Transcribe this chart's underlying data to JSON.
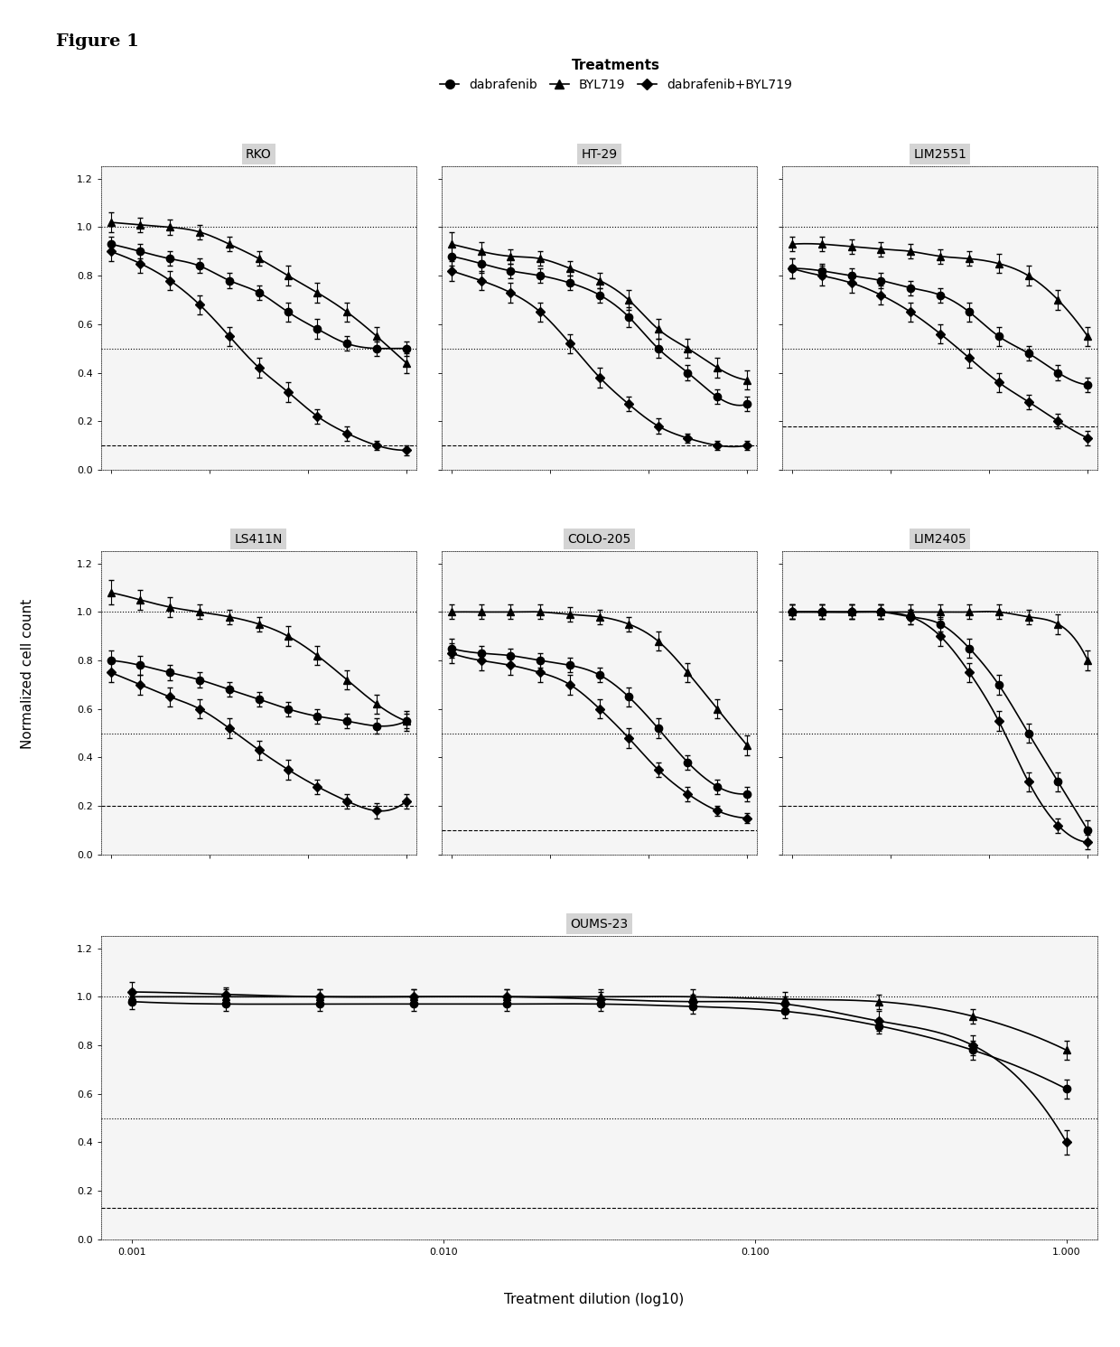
{
  "figure_title": "Figure 1",
  "legend_title": "Treatments",
  "xlabel": "Treatment dilution (log10)",
  "ylabel": "Normalized cell count",
  "x_values": [
    0.001,
    0.002,
    0.004,
    0.008,
    0.016,
    0.032,
    0.063,
    0.125,
    0.25,
    0.5,
    1.0
  ],
  "subplots": [
    {
      "title": "RKO",
      "dabrafenib": [
        0.93,
        0.9,
        0.87,
        0.84,
        0.78,
        0.73,
        0.65,
        0.58,
        0.52,
        0.5,
        0.5
      ],
      "dabrafenib_err": [
        0.03,
        0.03,
        0.03,
        0.03,
        0.03,
        0.03,
        0.04,
        0.04,
        0.03,
        0.03,
        0.03
      ],
      "BYL719": [
        1.02,
        1.01,
        1.0,
        0.98,
        0.93,
        0.87,
        0.8,
        0.73,
        0.65,
        0.55,
        0.44
      ],
      "BYL719_err": [
        0.04,
        0.03,
        0.03,
        0.03,
        0.03,
        0.03,
        0.04,
        0.04,
        0.04,
        0.04,
        0.04
      ],
      "combo": [
        0.9,
        0.85,
        0.78,
        0.68,
        0.55,
        0.42,
        0.32,
        0.22,
        0.15,
        0.1,
        0.08
      ],
      "combo_err": [
        0.04,
        0.04,
        0.04,
        0.04,
        0.04,
        0.04,
        0.04,
        0.03,
        0.03,
        0.02,
        0.02
      ],
      "hline_dashed": 0.1,
      "hline_dotted1": 1.0,
      "hline_dotted2": 0.5
    },
    {
      "title": "HT-29",
      "dabrafenib": [
        0.88,
        0.85,
        0.82,
        0.8,
        0.77,
        0.72,
        0.63,
        0.5,
        0.4,
        0.3,
        0.27
      ],
      "dabrafenib_err": [
        0.04,
        0.04,
        0.03,
        0.03,
        0.03,
        0.03,
        0.04,
        0.04,
        0.03,
        0.03,
        0.03
      ],
      "BYL719": [
        0.93,
        0.9,
        0.88,
        0.87,
        0.83,
        0.78,
        0.7,
        0.58,
        0.5,
        0.42,
        0.37
      ],
      "BYL719_err": [
        0.05,
        0.04,
        0.03,
        0.03,
        0.03,
        0.03,
        0.04,
        0.04,
        0.04,
        0.04,
        0.04
      ],
      "combo": [
        0.82,
        0.78,
        0.73,
        0.65,
        0.52,
        0.38,
        0.27,
        0.18,
        0.13,
        0.1,
        0.1
      ],
      "combo_err": [
        0.04,
        0.04,
        0.04,
        0.04,
        0.04,
        0.04,
        0.03,
        0.03,
        0.02,
        0.02,
        0.02
      ],
      "hline_dashed": 0.1,
      "hline_dotted1": 1.0,
      "hline_dotted2": 0.5
    },
    {
      "title": "LIM2551",
      "dabrafenib": [
        0.83,
        0.82,
        0.8,
        0.78,
        0.75,
        0.72,
        0.65,
        0.55,
        0.48,
        0.4,
        0.35
      ],
      "dabrafenib_err": [
        0.04,
        0.03,
        0.03,
        0.03,
        0.03,
        0.03,
        0.04,
        0.04,
        0.03,
        0.03,
        0.03
      ],
      "BYL719": [
        0.93,
        0.93,
        0.92,
        0.91,
        0.9,
        0.88,
        0.87,
        0.85,
        0.8,
        0.7,
        0.55
      ],
      "BYL719_err": [
        0.03,
        0.03,
        0.03,
        0.03,
        0.03,
        0.03,
        0.03,
        0.04,
        0.04,
        0.04,
        0.04
      ],
      "combo": [
        0.83,
        0.8,
        0.77,
        0.72,
        0.65,
        0.56,
        0.46,
        0.36,
        0.28,
        0.2,
        0.13
      ],
      "combo_err": [
        0.04,
        0.04,
        0.04,
        0.04,
        0.04,
        0.04,
        0.04,
        0.04,
        0.03,
        0.03,
        0.03
      ],
      "hline_dashed": 0.18,
      "hline_dotted1": 1.0,
      "hline_dotted2": 0.5
    },
    {
      "title": "LS411N",
      "dabrafenib": [
        0.8,
        0.78,
        0.75,
        0.72,
        0.68,
        0.64,
        0.6,
        0.57,
        0.55,
        0.53,
        0.55
      ],
      "dabrafenib_err": [
        0.04,
        0.04,
        0.03,
        0.03,
        0.03,
        0.03,
        0.03,
        0.03,
        0.03,
        0.03,
        0.03
      ],
      "BYL719": [
        1.08,
        1.05,
        1.02,
        1.0,
        0.98,
        0.95,
        0.9,
        0.82,
        0.72,
        0.62,
        0.55
      ],
      "BYL719_err": [
        0.05,
        0.04,
        0.04,
        0.03,
        0.03,
        0.03,
        0.04,
        0.04,
        0.04,
        0.04,
        0.04
      ],
      "combo": [
        0.75,
        0.7,
        0.65,
        0.6,
        0.52,
        0.43,
        0.35,
        0.28,
        0.22,
        0.18,
        0.22
      ],
      "combo_err": [
        0.04,
        0.04,
        0.04,
        0.04,
        0.04,
        0.04,
        0.04,
        0.03,
        0.03,
        0.03,
        0.03
      ],
      "hline_dashed": 0.2,
      "hline_dotted1": 1.0,
      "hline_dotted2": 0.5
    },
    {
      "title": "COLO-205",
      "dabrafenib": [
        0.85,
        0.83,
        0.82,
        0.8,
        0.78,
        0.74,
        0.65,
        0.52,
        0.38,
        0.28,
        0.25
      ],
      "dabrafenib_err": [
        0.04,
        0.03,
        0.03,
        0.03,
        0.03,
        0.03,
        0.04,
        0.04,
        0.03,
        0.03,
        0.03
      ],
      "BYL719": [
        1.0,
        1.0,
        1.0,
        1.0,
        0.99,
        0.98,
        0.95,
        0.88,
        0.75,
        0.6,
        0.45
      ],
      "BYL719_err": [
        0.03,
        0.03,
        0.03,
        0.03,
        0.03,
        0.03,
        0.03,
        0.04,
        0.04,
        0.04,
        0.04
      ],
      "combo": [
        0.83,
        0.8,
        0.78,
        0.75,
        0.7,
        0.6,
        0.48,
        0.35,
        0.25,
        0.18,
        0.15
      ],
      "combo_err": [
        0.04,
        0.04,
        0.04,
        0.04,
        0.04,
        0.04,
        0.04,
        0.03,
        0.03,
        0.02,
        0.02
      ],
      "hline_dashed": 0.1,
      "hline_dotted1": 1.0,
      "hline_dotted2": 0.5
    },
    {
      "title": "LIM2405",
      "dabrafenib": [
        1.0,
        1.0,
        1.0,
        1.0,
        0.98,
        0.95,
        0.85,
        0.7,
        0.5,
        0.3,
        0.1
      ],
      "dabrafenib_err": [
        0.03,
        0.03,
        0.03,
        0.03,
        0.03,
        0.03,
        0.04,
        0.04,
        0.04,
        0.04,
        0.04
      ],
      "BYL719": [
        1.0,
        1.0,
        1.0,
        1.0,
        1.0,
        1.0,
        1.0,
        1.0,
        0.98,
        0.95,
        0.8
      ],
      "BYL719_err": [
        0.03,
        0.03,
        0.03,
        0.03,
        0.03,
        0.03,
        0.03,
        0.03,
        0.03,
        0.04,
        0.04
      ],
      "combo": [
        1.0,
        1.0,
        1.0,
        1.0,
        0.98,
        0.9,
        0.75,
        0.55,
        0.3,
        0.12,
        0.05
      ],
      "combo_err": [
        0.03,
        0.03,
        0.03,
        0.03,
        0.03,
        0.04,
        0.04,
        0.04,
        0.04,
        0.03,
        0.03
      ],
      "hline_dashed": 0.2,
      "hline_dotted1": 1.0,
      "hline_dotted2": 0.5
    },
    {
      "title": "OUMS-23",
      "dabrafenib": [
        0.98,
        0.97,
        0.97,
        0.97,
        0.97,
        0.97,
        0.96,
        0.94,
        0.88,
        0.78,
        0.62
      ],
      "dabrafenib_err": [
        0.03,
        0.03,
        0.03,
        0.03,
        0.03,
        0.03,
        0.03,
        0.03,
        0.03,
        0.04,
        0.04
      ],
      "BYL719": [
        1.0,
        1.0,
        1.0,
        1.0,
        1.0,
        1.0,
        1.0,
        0.99,
        0.98,
        0.92,
        0.78
      ],
      "BYL719_err": [
        0.03,
        0.03,
        0.03,
        0.03,
        0.03,
        0.03,
        0.03,
        0.03,
        0.03,
        0.03,
        0.04
      ],
      "combo": [
        1.02,
        1.01,
        1.0,
        1.0,
        1.0,
        0.99,
        0.98,
        0.97,
        0.9,
        0.8,
        0.4
      ],
      "combo_err": [
        0.04,
        0.03,
        0.03,
        0.03,
        0.03,
        0.03,
        0.03,
        0.03,
        0.04,
        0.04,
        0.05
      ],
      "hline_dashed": 0.13,
      "hline_dotted1": 1.0,
      "hline_dotted2": 0.5
    }
  ],
  "subplot_layout": [
    [
      0,
      1,
      2
    ],
    [
      3,
      4,
      5
    ],
    [
      6
    ]
  ],
  "ylim": [
    0.0,
    1.25
  ],
  "yticks": [
    0.0,
    0.2,
    0.4,
    0.6,
    0.8,
    1.0,
    1.2
  ],
  "bg_color": "#ffffff",
  "panel_bg": "#e8e8e8",
  "title_bg": "#c8c8c8",
  "line_color": "#000000",
  "marker_size": 6,
  "linewidth": 1.2
}
